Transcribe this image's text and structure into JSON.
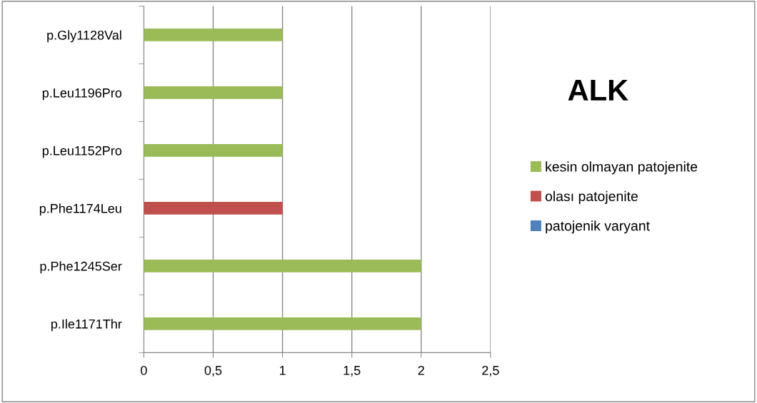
{
  "chart_data": {
    "type": "bar",
    "orientation": "horizontal",
    "title": "ALK",
    "categories": [
      "p.Gly1128Val",
      "p.Leu1196Pro",
      "p.Leu1152Pro",
      "p.Phe1174Leu",
      "p.Phe1245Ser",
      "p.Ile1171Thr"
    ],
    "series": [
      {
        "name": "kesin olmayan patojenite",
        "color": "#9bbb59",
        "values": [
          1,
          1,
          1,
          0,
          2,
          2
        ]
      },
      {
        "name": "olası patojenite",
        "color": "#c0504d",
        "values": [
          0,
          0,
          0,
          1,
          0,
          0
        ]
      },
      {
        "name": "patojenik varyant",
        "color": "#4f81bd",
        "values": [
          0,
          0,
          0,
          0,
          0,
          0
        ]
      }
    ],
    "xlim": [
      0,
      2.5
    ],
    "xticks": [
      0,
      {
        "value": 0.5,
        "label": "0,5"
      },
      1,
      {
        "value": 1.5,
        "label": "1,5"
      },
      2,
      {
        "value": 2.5,
        "label": "2,5"
      }
    ],
    "grid": "x",
    "legend": "right"
  }
}
